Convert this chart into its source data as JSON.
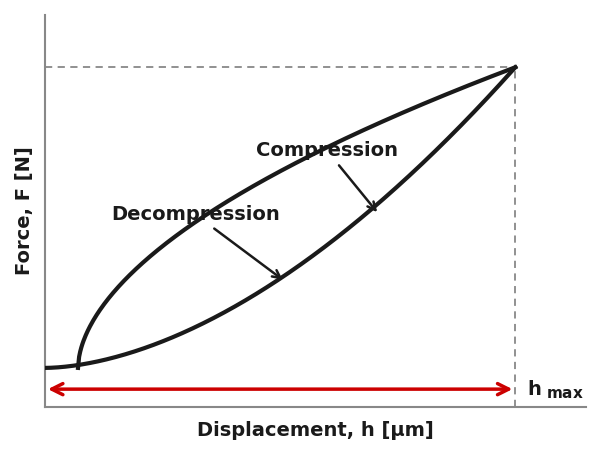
{
  "xlabel": "Displacement, h [μm]",
  "ylabel": "Force, F [N]",
  "background_color": "#ffffff",
  "axes_color": "#888888",
  "grid_color": "#bbbbbb",
  "curve_color": "#1a1a1a",
  "arrow_color": "#cc0000",
  "dashed_color": "#888888",
  "hmax_label_bold": "h",
  "hmax_label_sub": "max",
  "compression_label": "Compression",
  "decompression_label": "Decompression",
  "curve_lw": 3.0,
  "xlabel_fontsize": 13,
  "ylabel_fontsize": 13,
  "label_fontsize": 13,
  "xlim": [
    0,
    1.15
  ],
  "ylim": [
    -0.12,
    1.08
  ]
}
